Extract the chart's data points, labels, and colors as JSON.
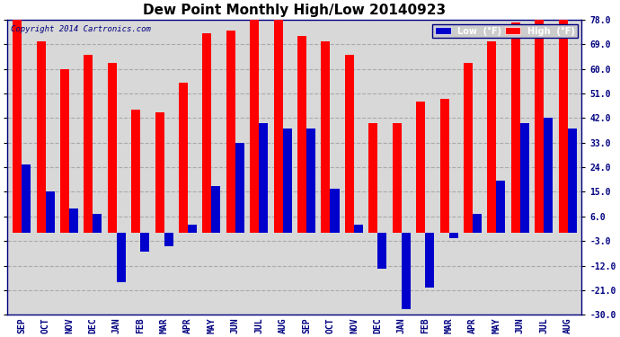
{
  "title": "Dew Point Monthly High/Low 20140923",
  "copyright": "Copyright 2014 Cartronics.com",
  "months": [
    "SEP",
    "OCT",
    "NOV",
    "DEC",
    "JAN",
    "FEB",
    "MAR",
    "APR",
    "MAY",
    "JUN",
    "JUL",
    "AUG",
    "SEP",
    "OCT",
    "NOV",
    "DEC",
    "JAN",
    "FEB",
    "MAR",
    "APR",
    "MAY",
    "JUN",
    "JUL",
    "AUG"
  ],
  "high_values": [
    78,
    70,
    60,
    65,
    62,
    45,
    44,
    55,
    73,
    74,
    78,
    78,
    72,
    70,
    65,
    40,
    40,
    48,
    49,
    62,
    70,
    77,
    78,
    78
  ],
  "low_values": [
    25,
    15,
    9,
    7,
    -18,
    -7,
    -5,
    3,
    17,
    33,
    40,
    38,
    38,
    16,
    3,
    -13,
    -28,
    -20,
    -2,
    7,
    19,
    40,
    42,
    38
  ],
  "high_color": "#ff0000",
  "low_color": "#0000cc",
  "ylim": [
    -30,
    78
  ],
  "yticks": [
    -30.0,
    -21.0,
    -12.0,
    -3.0,
    6.0,
    15.0,
    24.0,
    33.0,
    42.0,
    51.0,
    60.0,
    69.0,
    78.0
  ],
  "bar_width": 0.38,
  "background_color": "#ffffff",
  "plot_bg_color": "#d8d8d8",
  "grid_color": "#aaaaaa",
  "title_fontsize": 11,
  "tick_fontsize": 7,
  "legend_fontsize": 7,
  "fig_width": 6.9,
  "fig_height": 3.75,
  "dpi": 100
}
